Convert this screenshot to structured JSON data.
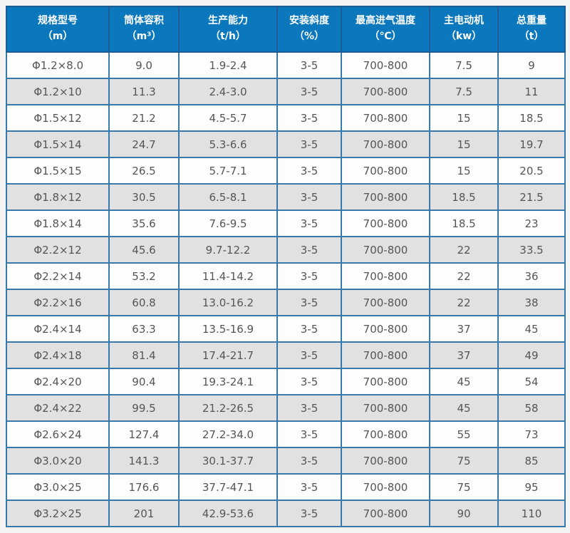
{
  "chart_data": {
    "type": "table",
    "columns": [
      {
        "label": "规格型号",
        "unit": "（m）"
      },
      {
        "label": "筒体容积",
        "unit": "（m³）"
      },
      {
        "label": "生产能力",
        "unit": "（t/h）"
      },
      {
        "label": "安装斜度",
        "unit": "（%）"
      },
      {
        "label": "最高进气温度",
        "unit": "（℃）"
      },
      {
        "label": "主电动机",
        "unit": "（kw）"
      },
      {
        "label": "总重量",
        "unit": "（t）"
      }
    ],
    "rows": [
      [
        "Φ1.2×8.0",
        "9.0",
        "1.9-2.4",
        "3-5",
        "700-800",
        "7.5",
        "9"
      ],
      [
        "Φ1.2×10",
        "11.3",
        "2.4-3.0",
        "3-5",
        "700-800",
        "7.5",
        "11"
      ],
      [
        "Φ1.5×12",
        "21.2",
        "4.5-5.7",
        "3-5",
        "700-800",
        "15",
        "18.5"
      ],
      [
        "Φ1.5×14",
        "24.7",
        "5.3-6.6",
        "3-5",
        "700-800",
        "15",
        "19.7"
      ],
      [
        "Φ1.5×15",
        "26.5",
        "5.7-7.1",
        "3-5",
        "700-800",
        "15",
        "20.5"
      ],
      [
        "Φ1.8×12",
        "30.5",
        "6.5-8.1",
        "3-5",
        "700-800",
        "18.5",
        "21.5"
      ],
      [
        "Φ1.8×14",
        "35.6",
        "7.6-9.5",
        "3-5",
        "700-800",
        "18.5",
        "23"
      ],
      [
        "Φ2.2×12",
        "45.6",
        "9.7-12.2",
        "3-5",
        "700-800",
        "22",
        "33.5"
      ],
      [
        "Φ2.2×14",
        "53.2",
        "11.4-14.2",
        "3-5",
        "700-800",
        "22",
        "36"
      ],
      [
        "Φ2.2×16",
        "60.8",
        "13.0-16.2",
        "3-5",
        "700-800",
        "22",
        "38"
      ],
      [
        "Φ2.4×14",
        "63.3",
        "13.5-16.9",
        "3-5",
        "700-800",
        "37",
        "45"
      ],
      [
        "Φ2.4×18",
        "81.4",
        "17.4-21.7",
        "3-5",
        "700-800",
        "37",
        "49"
      ],
      [
        "Φ2.4×20",
        "90.4",
        "19.3-24.1",
        "3-5",
        "700-800",
        "45",
        "54"
      ],
      [
        "Φ2.4×22",
        "99.5",
        "21.2-26.5",
        "3-5",
        "700-800",
        "45",
        "58"
      ],
      [
        "Φ2.6×24",
        "127.4",
        "27.2-34.0",
        "3-5",
        "700-800",
        "55",
        "73"
      ],
      [
        "Φ3.0×20",
        "141.3",
        "30.1-37.7",
        "3-5",
        "700-800",
        "75",
        "85"
      ],
      [
        "Φ3.0×25",
        "176.6",
        "37.7-47.1",
        "3-5",
        "700-800",
        "75",
        "95"
      ],
      [
        "Φ3.2×25",
        "201",
        "42.9-53.6",
        "3-5",
        "700-800",
        "90",
        "110"
      ]
    ],
    "layout_hints": {
      "stripes": "odd rows white, even rows gray",
      "grid": "on"
    }
  },
  "colors": {
    "header_bg": "#0b77bd",
    "header_border": "#1c5c95",
    "header_text": "#ffffff",
    "grid_border": "#3779ab",
    "row_odd_bg": "#fdfdfd",
    "row_even_bg": "#e1e1e1",
    "cell_text": "#555555",
    "page_bg": "#f4f4f4"
  }
}
